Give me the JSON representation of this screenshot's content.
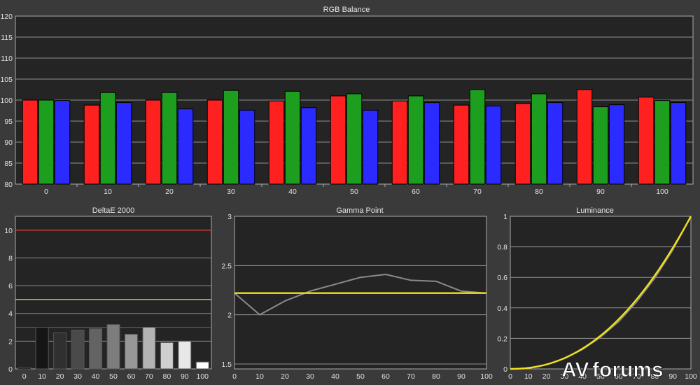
{
  "chart_data": [
    {
      "type": "bar",
      "title": "RGB Balance",
      "categories": [
        "0",
        "10",
        "20",
        "30",
        "40",
        "50",
        "60",
        "70",
        "80",
        "90",
        "100"
      ],
      "ylim": [
        80,
        120
      ],
      "yticks": [
        80,
        85,
        90,
        95,
        100,
        105,
        110,
        115,
        120
      ],
      "grid": true,
      "series": [
        {
          "color": "#ff2020",
          "values": [
            100.0,
            98.8,
            100.0,
            100.0,
            99.8,
            101.0,
            99.8,
            98.8,
            99.2,
            102.5,
            100.7
          ]
        },
        {
          "color": "#1e9e1e",
          "values": [
            100.0,
            101.8,
            101.8,
            102.3,
            102.1,
            101.5,
            101.0,
            102.5,
            101.5,
            98.4,
            99.9
          ]
        },
        {
          "color": "#2b2bff",
          "values": [
            99.9,
            99.4,
            97.9,
            97.6,
            98.2,
            97.6,
            99.4,
            98.6,
            99.4,
            98.9,
            99.4
          ]
        }
      ]
    },
    {
      "type": "bar",
      "title": "DeltaE 2000",
      "categories": [
        "0",
        "10",
        "20",
        "30",
        "40",
        "50",
        "60",
        "70",
        "80",
        "90",
        "100"
      ],
      "values": [
        0.1,
        3.0,
        2.6,
        2.8,
        2.9,
        3.2,
        2.5,
        3.0,
        1.9,
        2.0,
        0.5
      ],
      "bar_colors": [
        "#050505",
        "#151515",
        "#303030",
        "#4a4a4a",
        "#636363",
        "#7d7d7d",
        "#979797",
        "#b3b3b3",
        "#cfcfcf",
        "#e8e8e8",
        "#ffffff"
      ],
      "ylim": [
        0,
        11
      ],
      "yticks": [
        0,
        2,
        4,
        6,
        8,
        10
      ],
      "reference_lines": [
        {
          "value": 10,
          "color": "#ff3030"
        },
        {
          "value": 5,
          "color": "#f0e020"
        },
        {
          "value": 3,
          "color": "#1a8a1a"
        }
      ],
      "grid": true
    },
    {
      "type": "line",
      "title": "Gamma Point",
      "x": [
        0,
        10,
        20,
        30,
        40,
        50,
        60,
        70,
        80,
        90,
        100
      ],
      "xlim": [
        0,
        100
      ],
      "ylim": [
        1.45,
        3.0
      ],
      "yticks": [
        "1.5",
        "2",
        "2.5",
        "3"
      ],
      "grid": true,
      "series": [
        {
          "color": "#8a8a8a",
          "values": [
            2.22,
            2.0,
            2.14,
            2.24,
            2.31,
            2.38,
            2.41,
            2.35,
            2.34,
            2.24,
            2.22
          ]
        },
        {
          "color": "#f0e020",
          "values": [
            2.22,
            2.22,
            2.22,
            2.22,
            2.22,
            2.22,
            2.22,
            2.22,
            2.22,
            2.22,
            2.22
          ]
        }
      ]
    },
    {
      "type": "line",
      "title": "Luminance",
      "x": [
        0,
        10,
        20,
        30,
        40,
        50,
        60,
        70,
        80,
        90,
        100
      ],
      "xlim": [
        0,
        100
      ],
      "ylim": [
        0,
        1
      ],
      "yticks": [
        "0",
        "0.2",
        "0.4",
        "0.6",
        "0.8",
        "1"
      ],
      "grid": true,
      "series": [
        {
          "color": "#8a8a8a",
          "values": [
            0.0,
            0.006,
            0.028,
            0.068,
            0.128,
            0.208,
            0.31,
            0.44,
            0.595,
            0.78,
            1.0
          ]
        },
        {
          "color": "#f0e020",
          "values": [
            0.0,
            0.006,
            0.029,
            0.071,
            0.133,
            0.216,
            0.322,
            0.454,
            0.61,
            0.792,
            1.0
          ]
        }
      ]
    }
  ],
  "watermark": {
    "part1": "AV",
    "part2": "forums"
  }
}
